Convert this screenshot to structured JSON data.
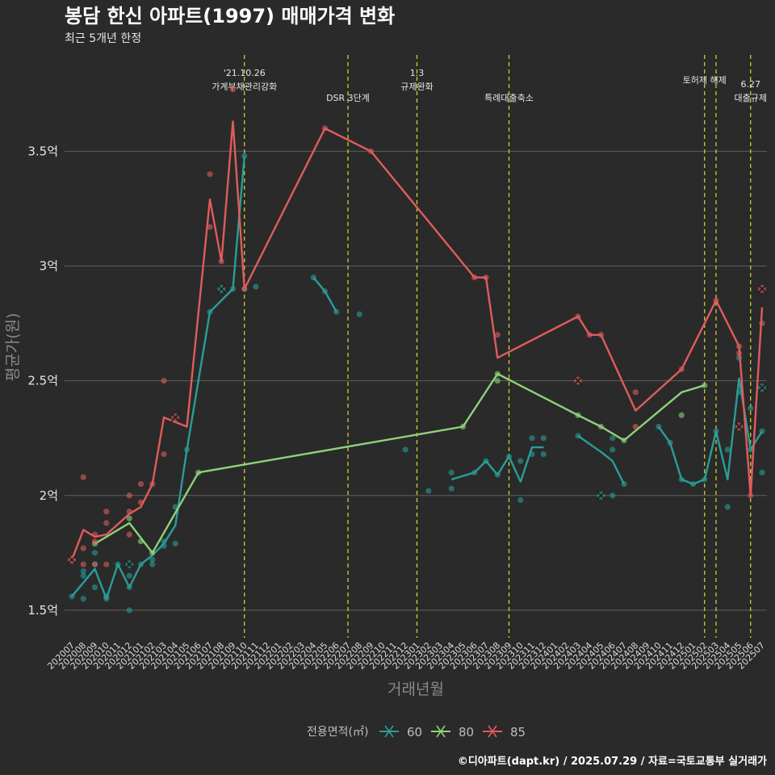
{
  "chart_data": {
    "type": "line",
    "title": "봉담 한신 아파트(1997) 매매가격 변화",
    "subtitle": "최근 5개년 한정",
    "xlabel": "거래년월",
    "ylabel": "평균가(원)",
    "caption": "©디아파트(dapt.kr) / 2025.07.29 / 자료=국토교통부 실거래가",
    "y_unit": "억",
    "ylim": [
      1.38,
      3.92
    ],
    "yticks": [
      1.5,
      2,
      2.5,
      3,
      3.5
    ],
    "ytick_labels": [
      "1.5억",
      "2억",
      "2.5억",
      "3억",
      "3.5억"
    ],
    "grid": true,
    "legend_placement": "bottom",
    "legend_title": "전용면적(㎡)",
    "categories": [
      "202007",
      "202008",
      "202009",
      "202010",
      "202011",
      "202012",
      "202101",
      "202102",
      "202103",
      "202104",
      "202105",
      "202106",
      "202107",
      "202108",
      "202109",
      "202110",
      "202111",
      "202112",
      "202201",
      "202202",
      "202203",
      "202204",
      "202205",
      "202206",
      "202207",
      "202208",
      "202209",
      "202210",
      "202211",
      "202212",
      "202301",
      "202302",
      "202303",
      "202304",
      "202305",
      "202306",
      "202307",
      "202308",
      "202309",
      "202310",
      "202311",
      "202312",
      "202401",
      "202402",
      "202403",
      "202404",
      "202405",
      "202406",
      "202407",
      "202408",
      "202409",
      "202410",
      "202411",
      "202412",
      "202501",
      "202502",
      "202503",
      "202504",
      "202505",
      "202506",
      "202507"
    ],
    "series": [
      {
        "name": "60",
        "color": "#2a9d98",
        "line": [
          [
            [
              "202007",
              1.56
            ],
            [
              "202009",
              1.68
            ],
            [
              "202010",
              1.55
            ],
            [
              "202011",
              1.7
            ],
            [
              "202012",
              1.6
            ],
            [
              "202101",
              1.7
            ],
            [
              "202102",
              1.74
            ],
            [
              "202103",
              1.79
            ],
            [
              "202104",
              1.87
            ],
            [
              "202105",
              2.2
            ],
            [
              "202107",
              2.8
            ],
            [
              "202108",
              2.85
            ],
            [
              "202109",
              2.9
            ],
            [
              "202110",
              3.48
            ]
          ],
          [
            [
              "202204",
              2.95
            ],
            [
              "202205",
              2.89
            ],
            [
              "202206",
              2.8
            ]
          ],
          [
            [
              "202304",
              2.07
            ],
            [
              "202306",
              2.1
            ],
            [
              "202307",
              2.15
            ],
            [
              "202308",
              2.09
            ],
            [
              "202309",
              2.17
            ],
            [
              "202310",
              2.06
            ],
            [
              "202311",
              2.21
            ],
            [
              "202312",
              2.21
            ]
          ],
          [
            [
              "202403",
              2.26
            ],
            [
              "202405",
              2.19
            ],
            [
              "202406",
              2.15
            ],
            [
              "202407",
              2.05
            ]
          ],
          [
            [
              "202410",
              2.3
            ],
            [
              "202411",
              2.23
            ],
            [
              "202412",
              2.07
            ],
            [
              "202501",
              2.05
            ],
            [
              "202502",
              2.07
            ],
            [
              "202503",
              2.28
            ],
            [
              "202504",
              2.07
            ],
            [
              "202505",
              2.51
            ],
            [
              "202506",
              2.2
            ],
            [
              "202507",
              2.28
            ]
          ]
        ],
        "points": [
          [
            "202007",
            1.56
          ],
          [
            "202008",
            1.55
          ],
          [
            "202008",
            1.67
          ],
          [
            "202008",
            1.65
          ],
          [
            "202009",
            1.6
          ],
          [
            "202009",
            1.7
          ],
          [
            "202009",
            1.75
          ],
          [
            "202010",
            1.55
          ],
          [
            "202010",
            1.56
          ],
          [
            "202011",
            1.7
          ],
          [
            "202012",
            1.5
          ],
          [
            "202012",
            1.6
          ],
          [
            "202012",
            1.65
          ],
          [
            "202101",
            1.7
          ],
          [
            "202102",
            1.7
          ],
          [
            "202102",
            1.72
          ],
          [
            "202103",
            1.78
          ],
          [
            "202103",
            1.8
          ],
          [
            "202104",
            1.79
          ],
          [
            "202104",
            1.95
          ],
          [
            "202105",
            2.2
          ],
          [
            "202107",
            2.8
          ],
          [
            "202108",
            2.9
          ],
          [
            "202109",
            2.9
          ],
          [
            "202110",
            3.48
          ],
          [
            "202110",
            2.9
          ],
          [
            "202111",
            2.91
          ],
          [
            "202204",
            2.95
          ],
          [
            "202205",
            2.89
          ],
          [
            "202206",
            2.8
          ],
          [
            "202208",
            2.79
          ],
          [
            "202212",
            2.2
          ],
          [
            "202302",
            2.02
          ],
          [
            "202304",
            2.03
          ],
          [
            "202304",
            2.1
          ],
          [
            "202306",
            2.1
          ],
          [
            "202307",
            2.15
          ],
          [
            "202308",
            2.09
          ],
          [
            "202309",
            2.17
          ],
          [
            "202310",
            1.98
          ],
          [
            "202310",
            2.15
          ],
          [
            "202311",
            2.25
          ],
          [
            "202311",
            2.18
          ],
          [
            "202312",
            2.25
          ],
          [
            "202312",
            2.18
          ],
          [
            "202403",
            2.26
          ],
          [
            "202406",
            2.2
          ],
          [
            "202406",
            2.25
          ],
          [
            "202406",
            2.0
          ],
          [
            "202407",
            2.05
          ],
          [
            "202410",
            2.3
          ],
          [
            "202411",
            2.23
          ],
          [
            "202412",
            2.07
          ],
          [
            "202501",
            2.05
          ],
          [
            "202502",
            2.07
          ],
          [
            "202503",
            2.28
          ],
          [
            "202504",
            1.95
          ],
          [
            "202504",
            2.2
          ],
          [
            "202505",
            2.6
          ],
          [
            "202505",
            2.45
          ],
          [
            "202506",
            2.38
          ],
          [
            "202506",
            2.2
          ],
          [
            "202507",
            2.28
          ],
          [
            "202507",
            2.1
          ]
        ],
        "cross_points": [
          [
            "202108",
            2.9
          ],
          [
            "202012",
            1.7
          ],
          [
            "202405",
            2.0
          ],
          [
            "202507",
            2.47
          ]
        ]
      },
      {
        "name": "80",
        "color": "#8ed27a",
        "line": [
          [
            [
              "202009",
              1.79
            ],
            [
              "202012",
              1.88
            ],
            [
              "202102",
              1.75
            ],
            [
              "202106",
              2.1
            ],
            [
              "202305",
              2.3
            ],
            [
              "202308",
              2.53
            ],
            [
              "202403",
              2.35
            ],
            [
              "202405",
              2.3
            ],
            [
              "202407",
              2.24
            ],
            [
              "202412",
              2.45
            ],
            [
              "202502",
              2.48
            ]
          ]
        ],
        "points": [
          [
            "202009",
            1.79
          ],
          [
            "202012",
            1.9
          ],
          [
            "202101",
            1.8
          ],
          [
            "202102",
            1.75
          ],
          [
            "202106",
            2.1
          ],
          [
            "202305",
            2.3
          ],
          [
            "202308",
            2.53
          ],
          [
            "202308",
            2.5
          ],
          [
            "202403",
            2.35
          ],
          [
            "202405",
            2.3
          ],
          [
            "202407",
            2.24
          ],
          [
            "202412",
            2.35
          ],
          [
            "202502",
            2.48
          ]
        ],
        "cross_points": []
      },
      {
        "name": "85",
        "color": "#e05c5c",
        "line": [
          [
            [
              "202007",
              1.72
            ],
            [
              "202008",
              1.85
            ],
            [
              "202009",
              1.82
            ],
            [
              "202010",
              1.83
            ],
            [
              "202012",
              1.92
            ],
            [
              "202101",
              1.95
            ],
            [
              "202102",
              2.05
            ],
            [
              "202103",
              2.34
            ],
            [
              "202105",
              2.3
            ],
            [
              "202107",
              3.29
            ],
            [
              "202108",
              3.02
            ],
            [
              "202109",
              3.63
            ],
            [
              "202110",
              2.9
            ],
            [
              "202205",
              3.6
            ],
            [
              "202209",
              3.5
            ],
            [
              "202306",
              2.95
            ],
            [
              "202307",
              2.95
            ],
            [
              "202308",
              2.6
            ],
            [
              "202403",
              2.78
            ],
            [
              "202404",
              2.7
            ],
            [
              "202405",
              2.7
            ],
            [
              "202408",
              2.37
            ],
            [
              "202412",
              2.55
            ],
            [
              "202503",
              2.85
            ],
            [
              "202505",
              2.65
            ],
            [
              "202506",
              2.0
            ],
            [
              "202507",
              2.82
            ]
          ]
        ],
        "points": [
          [
            "202007",
            1.72
          ],
          [
            "202008",
            1.77
          ],
          [
            "202008",
            1.7
          ],
          [
            "202008",
            2.08
          ],
          [
            "202009",
            1.83
          ],
          [
            "202009",
            1.8
          ],
          [
            "202009",
            1.7
          ],
          [
            "202010",
            1.93
          ],
          [
            "202010",
            1.88
          ],
          [
            "202010",
            1.7
          ],
          [
            "202012",
            1.83
          ],
          [
            "202012",
            1.93
          ],
          [
            "202012",
            2.0
          ],
          [
            "202101",
            1.97
          ],
          [
            "202101",
            2.05
          ],
          [
            "202102",
            2.05
          ],
          [
            "202103",
            2.5
          ],
          [
            "202103",
            2.18
          ],
          [
            "202107",
            3.4
          ],
          [
            "202107",
            3.17
          ],
          [
            "202108",
            3.02
          ],
          [
            "202109",
            3.77
          ],
          [
            "202110",
            2.9
          ],
          [
            "202205",
            3.6
          ],
          [
            "202209",
            3.5
          ],
          [
            "202306",
            2.95
          ],
          [
            "202307",
            2.95
          ],
          [
            "202308",
            2.7
          ],
          [
            "202403",
            2.78
          ],
          [
            "202404",
            2.7
          ],
          [
            "202405",
            2.7
          ],
          [
            "202408",
            2.45
          ],
          [
            "202408",
            2.3
          ],
          [
            "202412",
            2.55
          ],
          [
            "202503",
            2.85
          ],
          [
            "202505",
            2.65
          ],
          [
            "202505",
            2.62
          ],
          [
            "202506",
            2.0
          ],
          [
            "202507",
            2.75
          ]
        ],
        "cross_points": [
          [
            "202007",
            1.72
          ],
          [
            "202104",
            2.34
          ],
          [
            "202403",
            2.5
          ],
          [
            "202505",
            2.3
          ],
          [
            "202507",
            2.9
          ]
        ]
      }
    ],
    "events": [
      {
        "x": 15.0,
        "lines": [
          "'21.10.26",
          "가계부채관리강화"
        ],
        "label_y": 0
      },
      {
        "x": 24.0,
        "lines": [
          "DSR 3단계"
        ],
        "label_y": 1
      },
      {
        "x": 30.0,
        "lines": [
          "1.3",
          "규제완화"
        ],
        "label_y": 0
      },
      {
        "x": 38.0,
        "lines": [
          "특례대출축소"
        ],
        "label_y": 1
      },
      {
        "x": 55.0,
        "lines": [
          "토허제 해제"
        ],
        "label_y": 0
      },
      {
        "x": 56.0,
        "lines": [],
        "label_y": 0
      },
      {
        "x": 59.0,
        "lines": [
          "6.27",
          "대출규제"
        ],
        "label_y": 1
      }
    ]
  }
}
